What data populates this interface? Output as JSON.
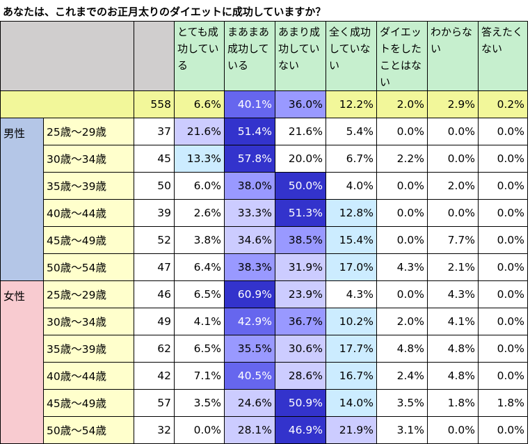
{
  "title": "あなたは、これまでのお正月太りのダイエットに成功していますか？",
  "colors": {
    "header_gray": "#d0cece",
    "header_green": "#c6efce",
    "total_yellow": "#f2f79a",
    "male": "#b4c6e7",
    "female": "#f8cbd0",
    "age_yellow": "#ffffcc",
    "white": "#ffffff",
    "purple_dark": "#3333cc",
    "purple_mid": "#6666ee",
    "purple_light": "#9999ff",
    "purple_pale": "#ccccff",
    "blue_pale": "#ccecff"
  },
  "chart_data": {
    "type": "table",
    "title": "あなたは、これまでのお正月太りのダイエットに成功していますか？",
    "columns": [
      "とても成功している",
      "まあまあ成功している",
      "あまり成功していない",
      "全く成功していない",
      "ダイエットをしたことはない",
      "わからない",
      "答えたくない"
    ],
    "total": {
      "n": "558",
      "values": [
        "6.6%",
        "40.1%",
        "36.0%",
        "12.2%",
        "2.0%",
        "2.9%",
        "0.2%"
      ]
    },
    "groups": [
      {
        "gender": "男性",
        "rows": [
          {
            "age": "25歳～29歳",
            "n": "37",
            "values": [
              "21.6%",
              "51.4%",
              "21.6%",
              "5.4%",
              "0.0%",
              "0.0%",
              "0.0%"
            ]
          },
          {
            "age": "30歳～34歳",
            "n": "45",
            "values": [
              "13.3%",
              "57.8%",
              "20.0%",
              "6.7%",
              "2.2%",
              "0.0%",
              "0.0%"
            ]
          },
          {
            "age": "35歳～39歳",
            "n": "50",
            "values": [
              "6.0%",
              "38.0%",
              "50.0%",
              "4.0%",
              "0.0%",
              "2.0%",
              "0.0%"
            ]
          },
          {
            "age": "40歳～44歳",
            "n": "39",
            "values": [
              "2.6%",
              "33.3%",
              "51.3%",
              "12.8%",
              "0.0%",
              "0.0%",
              "0.0%"
            ]
          },
          {
            "age": "45歳～49歳",
            "n": "52",
            "values": [
              "3.8%",
              "34.6%",
              "38.5%",
              "15.4%",
              "0.0%",
              "7.7%",
              "0.0%"
            ]
          },
          {
            "age": "50歳～54歳",
            "n": "47",
            "values": [
              "6.4%",
              "38.3%",
              "31.9%",
              "17.0%",
              "4.3%",
              "2.1%",
              "0.0%"
            ]
          }
        ]
      },
      {
        "gender": "女性",
        "rows": [
          {
            "age": "25歳～29歳",
            "n": "46",
            "values": [
              "6.5%",
              "60.9%",
              "23.9%",
              "4.3%",
              "0.0%",
              "4.3%",
              "0.0%"
            ]
          },
          {
            "age": "30歳～34歳",
            "n": "49",
            "values": [
              "4.1%",
              "42.9%",
              "36.7%",
              "10.2%",
              "2.0%",
              "4.1%",
              "0.0%"
            ]
          },
          {
            "age": "35歳～39歳",
            "n": "62",
            "values": [
              "6.5%",
              "35.5%",
              "30.6%",
              "17.7%",
              "4.8%",
              "4.8%",
              "0.0%"
            ]
          },
          {
            "age": "40歳～44歳",
            "n": "42",
            "values": [
              "7.1%",
              "40.5%",
              "28.6%",
              "16.7%",
              "2.4%",
              "4.8%",
              "0.0%"
            ]
          },
          {
            "age": "45歳～49歳",
            "n": "57",
            "values": [
              "3.5%",
              "24.6%",
              "50.9%",
              "14.0%",
              "3.5%",
              "1.8%",
              "1.8%"
            ]
          },
          {
            "age": "50歳～54歳",
            "n": "32",
            "values": [
              "0.0%",
              "28.1%",
              "46.9%",
              "21.9%",
              "3.1%",
              "0.0%",
              "0.0%"
            ]
          }
        ]
      }
    ],
    "cell_colors": {
      "total": [
        "",
        "purple_mid",
        "purple_light",
        "",
        "",
        "",
        ""
      ],
      "rows": [
        [
          "purple_pale",
          "purple_dark",
          "",
          "",
          "",
          "",
          ""
        ],
        [
          "blue_pale",
          "purple_dark",
          "",
          "",
          "",
          "",
          ""
        ],
        [
          "",
          "purple_light",
          "purple_dark",
          "",
          "",
          "",
          ""
        ],
        [
          "",
          "purple_pale",
          "purple_dark",
          "blue_pale",
          "",
          "",
          ""
        ],
        [
          "",
          "purple_pale",
          "purple_light",
          "blue_pale",
          "",
          "",
          ""
        ],
        [
          "",
          "purple_light",
          "purple_pale",
          "blue_pale",
          "",
          "",
          ""
        ],
        [
          "",
          "purple_dark",
          "purple_pale",
          "",
          "",
          "",
          ""
        ],
        [
          "",
          "purple_mid",
          "purple_light",
          "blue_pale",
          "",
          "",
          ""
        ],
        [
          "",
          "purple_light",
          "purple_pale",
          "blue_pale",
          "",
          "",
          ""
        ],
        [
          "",
          "purple_mid",
          "purple_pale",
          "blue_pale",
          "",
          "",
          ""
        ],
        [
          "",
          "purple_pale",
          "purple_dark",
          "blue_pale",
          "",
          "",
          ""
        ],
        [
          "",
          "purple_pale",
          "purple_dark",
          "purple_pale",
          "",
          "",
          ""
        ]
      ]
    }
  }
}
